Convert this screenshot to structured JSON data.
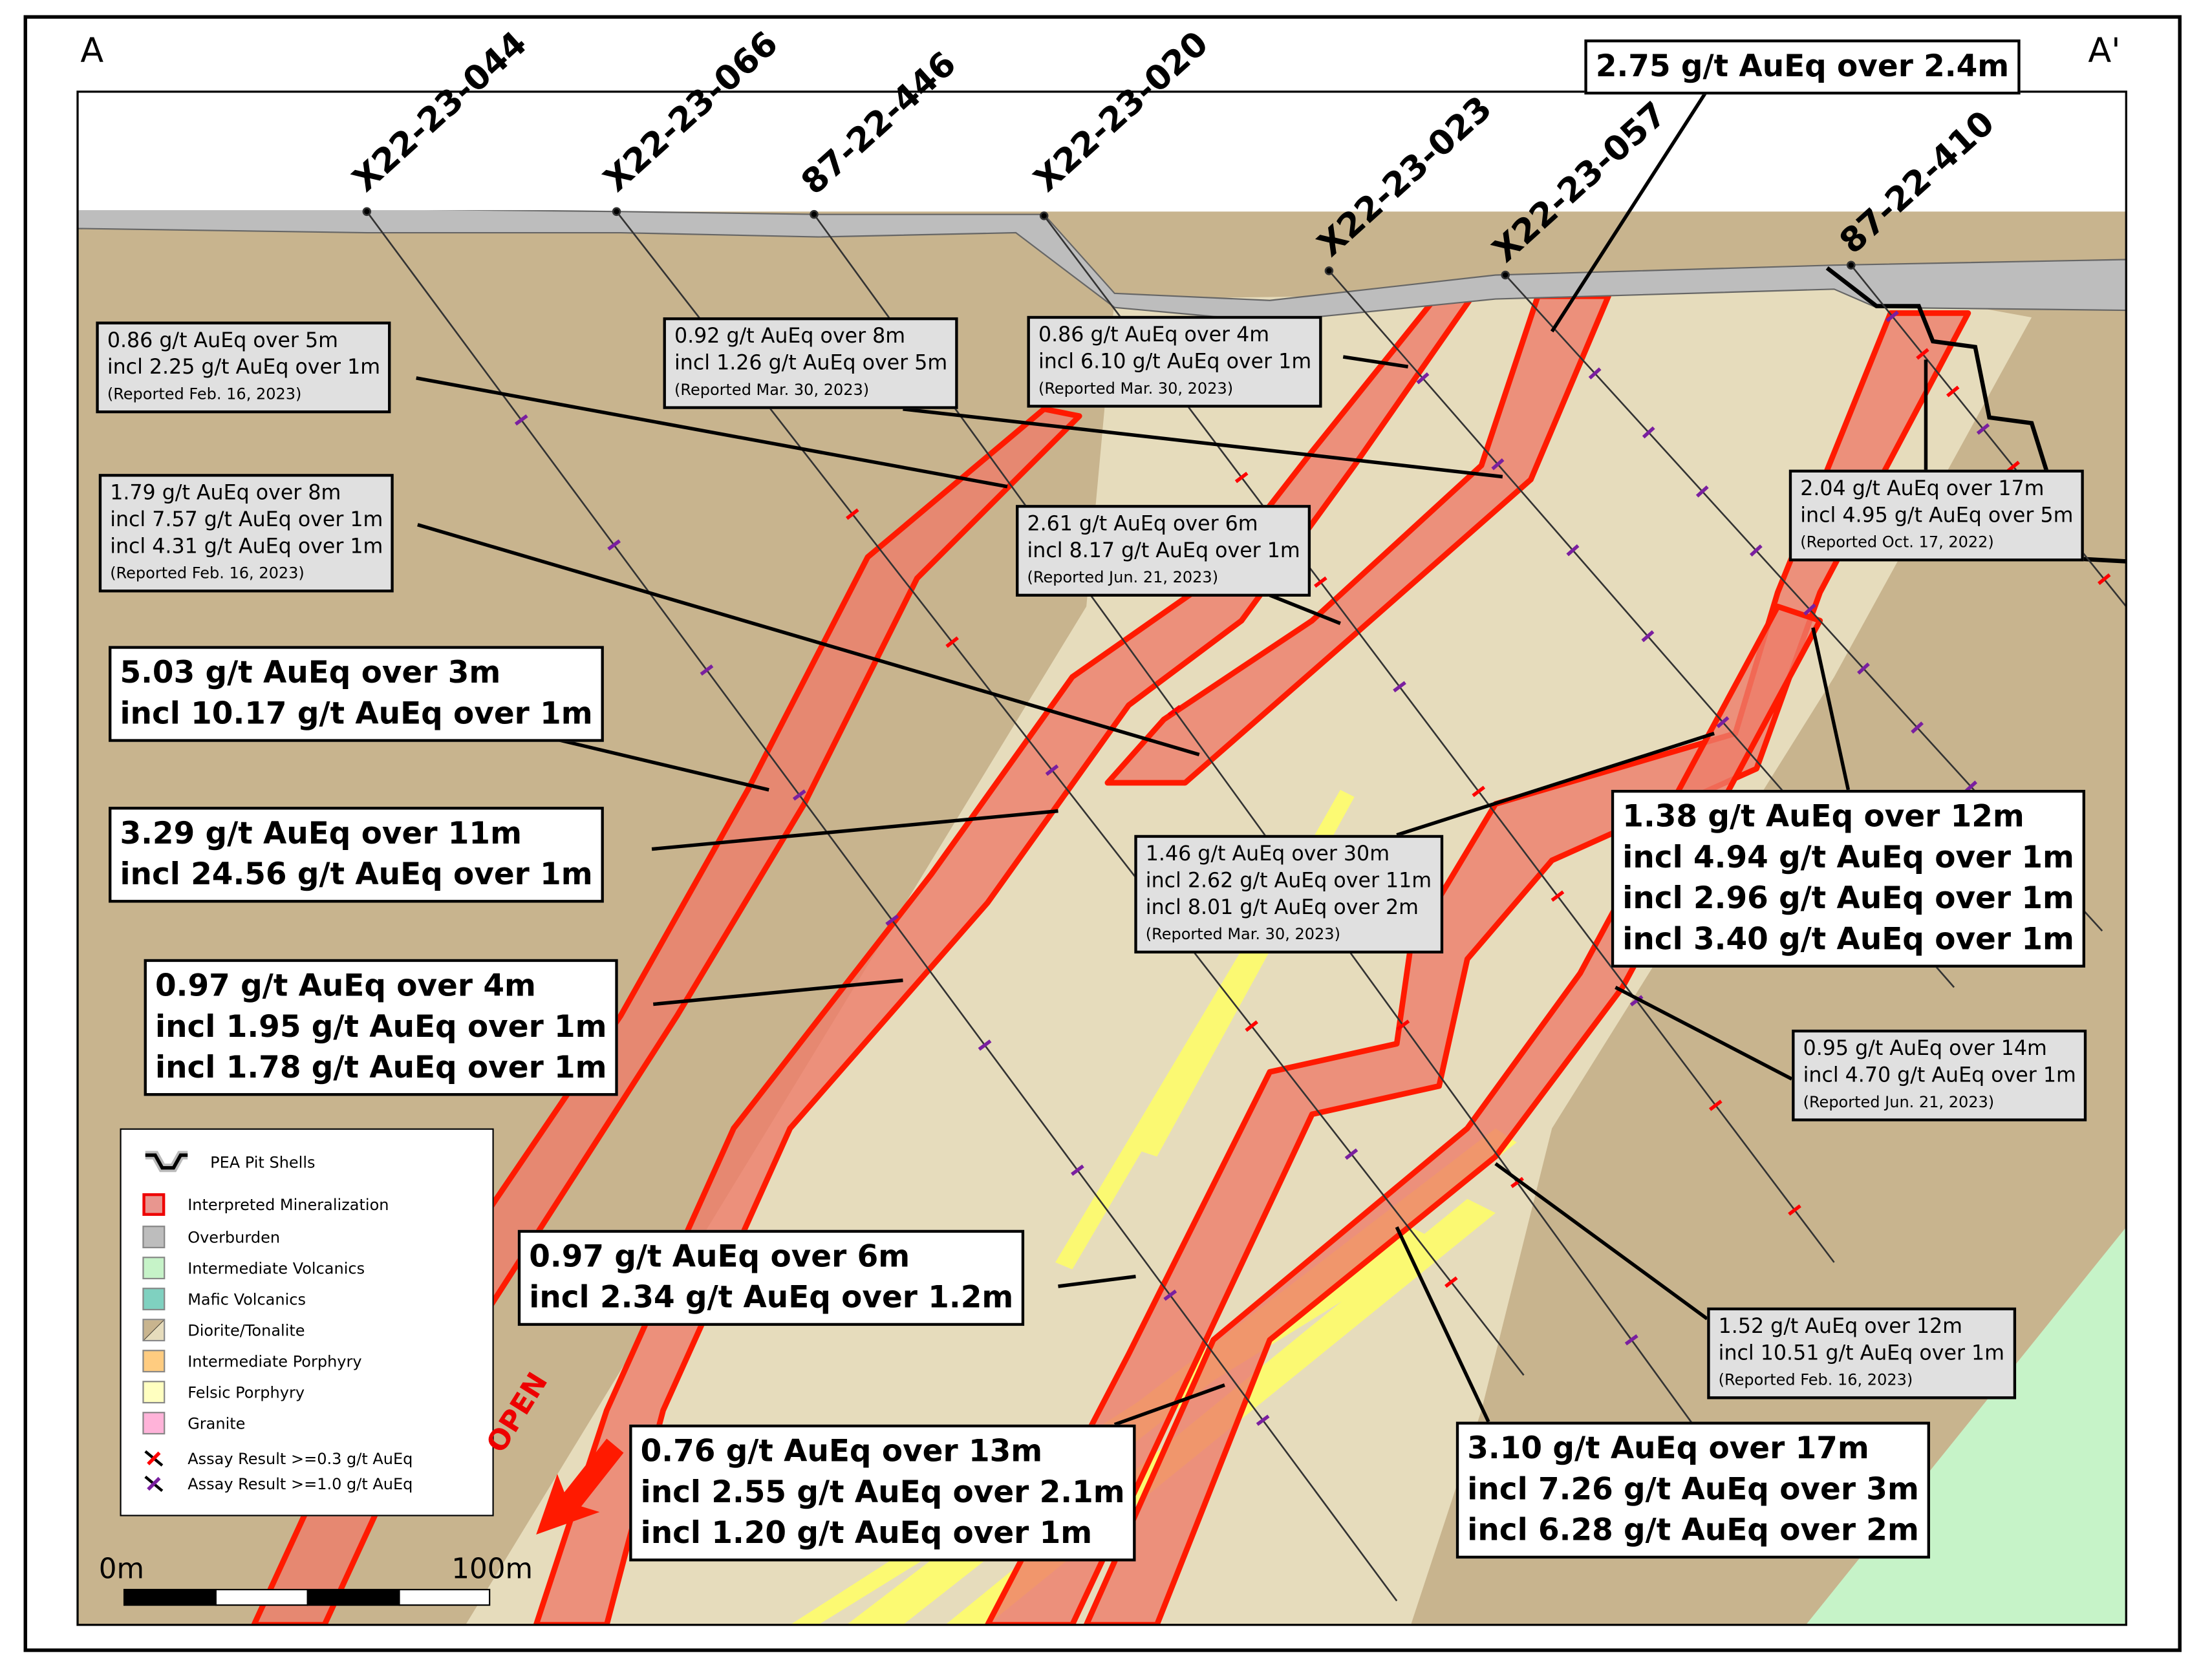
{
  "section": {
    "left_label": "A",
    "right_label": "A'"
  },
  "drill_holes": [
    {
      "id": "X22-23-044"
    },
    {
      "id": "X22-23-066"
    },
    {
      "id": "87-22-446"
    },
    {
      "id": "X22-23-020"
    },
    {
      "id": "X22-23-023"
    },
    {
      "id": "X22-23-057"
    },
    {
      "id": "87-22-410"
    }
  ],
  "callouts_major": [
    {
      "lines": [
        "2.75 g/t AuEq over 2.4m"
      ]
    },
    {
      "lines": [
        "5.03 g/t AuEq over 3m",
        "incl 10.17 g/t AuEq over 1m"
      ]
    },
    {
      "lines": [
        "3.29 g/t AuEq over 11m",
        "incl 24.56 g/t AuEq over 1m"
      ]
    },
    {
      "lines": [
        "0.97 g/t AuEq over 4m",
        "incl 1.95 g/t AuEq over 1m",
        "incl 1.78 g/t AuEq over 1m"
      ]
    },
    {
      "lines": [
        "0.97 g/t AuEq over 6m",
        "incl 2.34 g/t AuEq over 1.2m"
      ]
    },
    {
      "lines": [
        "0.76 g/t AuEq over 13m",
        "incl 2.55 g/t AuEq over 2.1m",
        "incl 1.20 g/t AuEq over 1m"
      ]
    },
    {
      "lines": [
        "3.10 g/t AuEq over 17m",
        "incl 7.26 g/t AuEq over 3m",
        "incl 6.28 g/t AuEq over 2m"
      ]
    },
    {
      "lines": [
        "1.38 g/t AuEq over 12m",
        "incl 4.94 g/t AuEq over 1m",
        "incl 2.96 g/t AuEq over 1m",
        "incl 3.40 g/t AuEq over 1m"
      ]
    }
  ],
  "callouts_reported": [
    {
      "lines": [
        "0.86 g/t AuEq over 5m",
        "incl 2.25 g/t AuEq over 1m"
      ],
      "reported": "(Reported Feb. 16, 2023)"
    },
    {
      "lines": [
        "0.92 g/t AuEq over 8m",
        "incl 1.26 g/t AuEq over 5m"
      ],
      "reported": "(Reported Mar. 30, 2023)"
    },
    {
      "lines": [
        "0.86 g/t AuEq over 4m",
        "incl 6.10 g/t AuEq over 1m"
      ],
      "reported": "(Reported Mar. 30, 2023)"
    },
    {
      "lines": [
        "1.79 g/t AuEq over 8m",
        "incl 7.57 g/t AuEq over 1m",
        "incl 4.31 g/t AuEq over 1m"
      ],
      "reported": "(Reported Feb. 16, 2023)"
    },
    {
      "lines": [
        "2.61 g/t AuEq over 6m",
        "incl 8.17 g/t AuEq over 1m"
      ],
      "reported": "(Reported Jun. 21, 2023)"
    },
    {
      "lines": [
        "1.46 g/t AuEq over 30m",
        "incl 2.62 g/t AuEq over 11m",
        "incl 8.01 g/t AuEq over 2m"
      ],
      "reported": "(Reported Mar. 30, 2023)"
    },
    {
      "lines": [
        "2.04 g/t AuEq over 17m",
        "incl 4.95 g/t AuEq over 5m"
      ],
      "reported": "(Reported Oct. 17, 2022)"
    },
    {
      "lines": [
        "0.95 g/t AuEq over 14m",
        "incl 4.70 g/t AuEq over 1m"
      ],
      "reported": "(Reported Jun. 21, 2023)"
    },
    {
      "lines": [
        "1.52 g/t AuEq over 12m",
        "incl 10.51 g/t AuEq over 1m"
      ],
      "reported": "(Reported Feb. 16, 2023)"
    }
  ],
  "legend": {
    "items": [
      {
        "label": "PEA Pit Shells",
        "icon": "pit-shell-icon"
      },
      {
        "label": "Interpreted Mineralization",
        "color": "#e8968f"
      },
      {
        "label": "Overburden",
        "color": "#bdbdbd"
      },
      {
        "label": "Intermediate Volcanics",
        "color": "#c6f3c8"
      },
      {
        "label": "Mafic Volcanics",
        "color": "#7fd1c0"
      },
      {
        "label": "Diorite/Tonalite",
        "color": "#c8b48e"
      },
      {
        "label": "Intermediate Porphyry",
        "color": "#ffcc80"
      },
      {
        "label": "Felsic Porphyry",
        "color": "#ffffc0"
      },
      {
        "label": "Granite",
        "color": "#ffb3d9"
      },
      {
        "label": "Assay Result >=0.3 g/t AuEq",
        "color": "#ff0000"
      },
      {
        "label": "Assay Result >=1.0 g/t AuEq",
        "color": "#7a1fa0"
      }
    ]
  },
  "scale_bar": {
    "start": "0m",
    "end": "100m"
  },
  "open_label": "OPEN",
  "colors": {
    "diorite": "#c8b48e",
    "tonalite": "#e6dcbc",
    "overburden": "#bdbdbd",
    "mineralization": "#ee7d6a",
    "mineralization_outline": "#ff1a00",
    "felsic": "#ffff66",
    "volcanics": "#c6f3c8"
  }
}
